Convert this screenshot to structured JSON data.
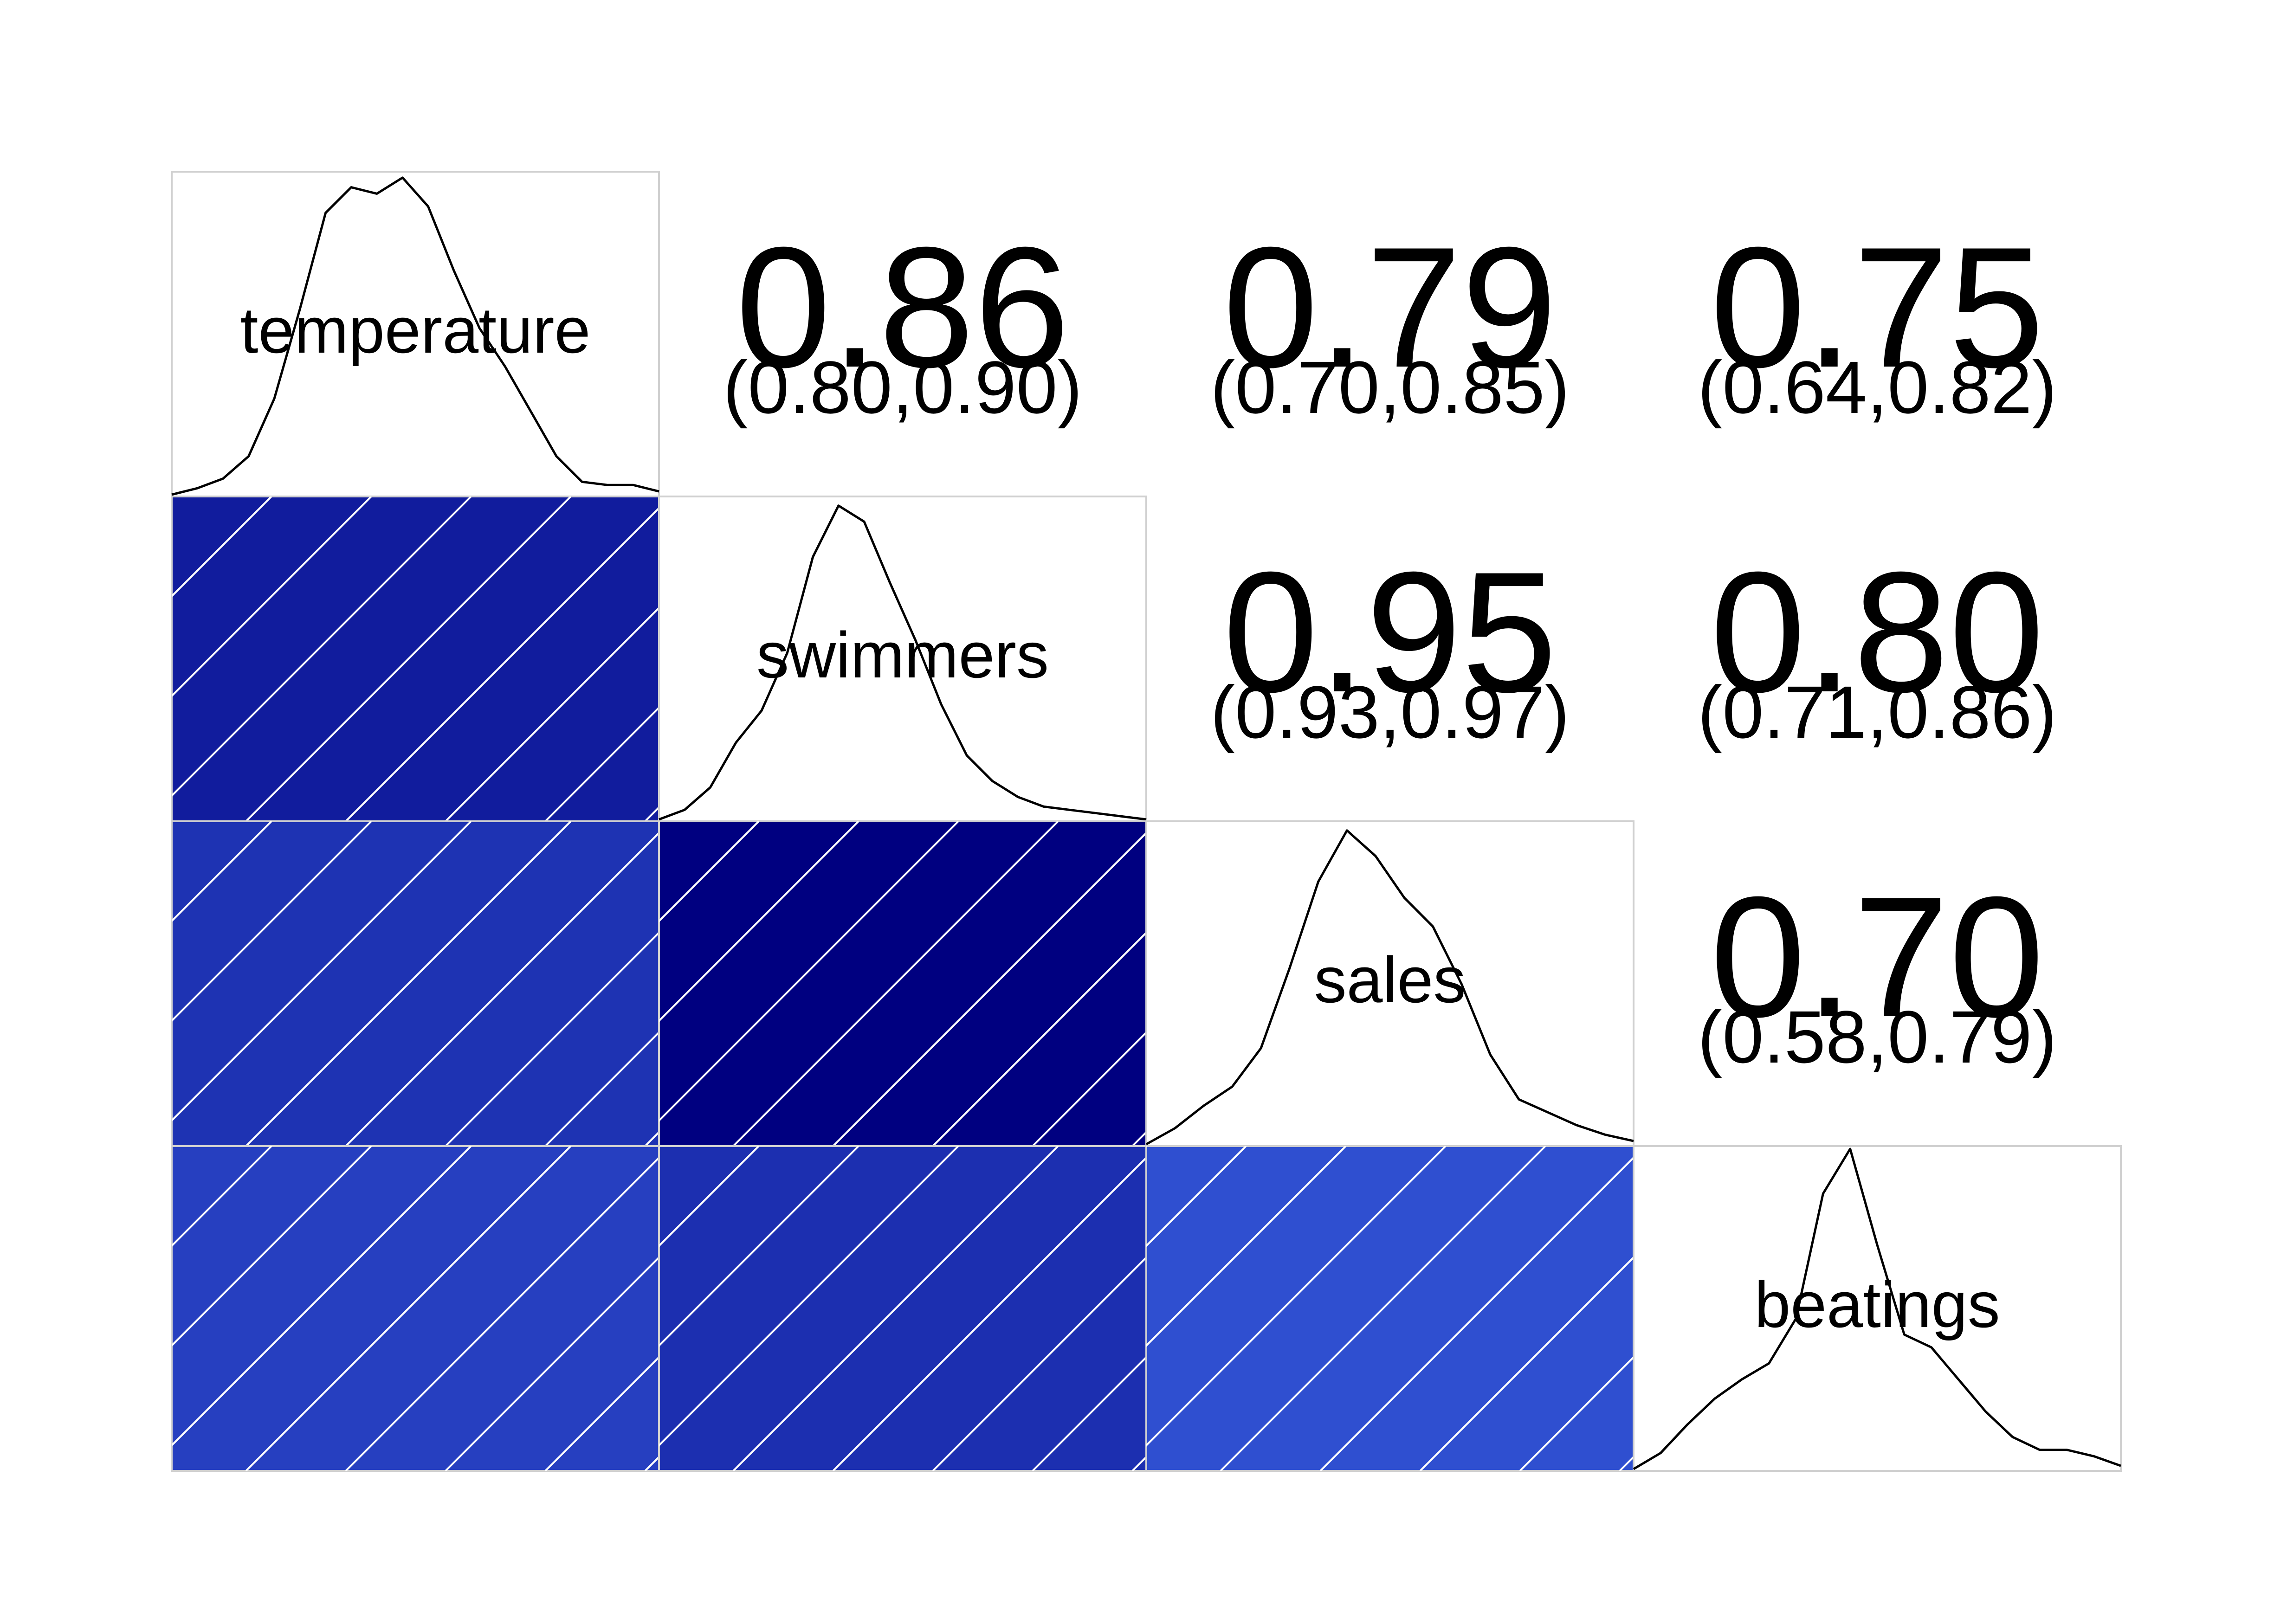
{
  "chart_data": {
    "type": "heatmap",
    "variables": [
      "temperature",
      "swimmers",
      "sales",
      "beatings"
    ],
    "correlations": [
      {
        "row": 0,
        "col": 1,
        "label": "0.86",
        "ci": "(0.80,0.90)",
        "value": 0.86
      },
      {
        "row": 0,
        "col": 2,
        "label": "0.79",
        "ci": "(0.70,0.85)",
        "value": 0.79
      },
      {
        "row": 0,
        "col": 3,
        "label": "0.75",
        "ci": "(0.64,0.82)",
        "value": 0.75
      },
      {
        "row": 1,
        "col": 2,
        "label": "0.95",
        "ci": "(0.93,0.97)",
        "value": 0.95
      },
      {
        "row": 1,
        "col": 3,
        "label": "0.80",
        "ci": "(0.71,0.86)",
        "value": 0.8
      },
      {
        "row": 2,
        "col": 3,
        "label": "0.70",
        "ci": "(0.58,0.79)",
        "value": 0.7
      }
    ],
    "densities": [
      [
        0.0,
        0.02,
        0.05,
        0.12,
        0.3,
        0.58,
        0.88,
        0.96,
        0.94,
        0.99,
        0.9,
        0.7,
        0.52,
        0.4,
        0.26,
        0.12,
        0.04,
        0.03,
        0.03,
        0.01
      ],
      [
        0.0,
        0.03,
        0.1,
        0.24,
        0.34,
        0.52,
        0.82,
        0.98,
        0.93,
        0.74,
        0.56,
        0.36,
        0.2,
        0.12,
        0.07,
        0.04,
        0.03,
        0.02,
        0.01,
        0.0
      ],
      [
        0.0,
        0.05,
        0.12,
        0.18,
        0.3,
        0.55,
        0.82,
        0.98,
        0.9,
        0.77,
        0.68,
        0.5,
        0.28,
        0.14,
        0.1,
        0.06,
        0.03,
        0.01
      ],
      [
        0.0,
        0.05,
        0.14,
        0.22,
        0.28,
        0.33,
        0.47,
        0.86,
        1.0,
        0.7,
        0.42,
        0.38,
        0.28,
        0.18,
        0.1,
        0.06,
        0.06,
        0.04,
        0.01
      ]
    ],
    "color_scale": {
      "low": "#2F4FD0",
      "high": "#000080"
    }
  }
}
